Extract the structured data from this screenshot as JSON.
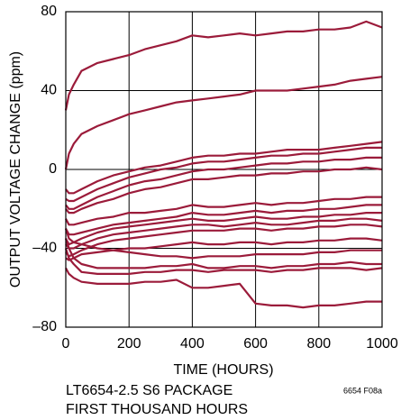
{
  "chart_data": {
    "type": "line",
    "x_label": "TIME (HOURS)",
    "y_label": "OUTPUT VOLTAGE CHANGE (ppm)",
    "caption": [
      "LT6654-2.5 S6 PACKAGE",
      "FIRST THOUSAND HOURS"
    ],
    "figure_code": "6654 F08a",
    "color": "#9b1b3a",
    "grid": true,
    "xlim": [
      0,
      1000
    ],
    "xticks": [
      0,
      200,
      400,
      600,
      800,
      1000
    ],
    "ylim": [
      -80,
      80
    ],
    "yticks": [
      {
        "value": -80,
        "label": "–80"
      },
      {
        "value": -40,
        "label": "–40"
      },
      0,
      40,
      80
    ],
    "x": [
      0,
      10,
      25,
      50,
      100,
      150,
      200,
      250,
      300,
      350,
      400,
      450,
      500,
      550,
      600,
      650,
      700,
      750,
      800,
      850,
      900,
      950,
      1000
    ],
    "series": [
      {
        "values": [
          30,
          38,
          43,
          50,
          54,
          56,
          58,
          61,
          63,
          65,
          68,
          67,
          68,
          69,
          68,
          69,
          70,
          70,
          71,
          71,
          72,
          75,
          72
        ]
      },
      {
        "values": [
          0,
          8,
          13,
          18,
          22,
          25,
          28,
          30,
          32,
          34,
          35,
          36,
          37,
          38,
          40,
          40,
          40,
          41,
          42,
          43,
          45,
          46,
          47
        ]
      },
      {
        "values": [
          -10,
          -12,
          -12,
          -10,
          -6,
          -3,
          -1,
          1,
          2,
          4,
          6,
          7,
          7,
          8,
          8,
          9,
          10,
          10,
          10,
          11,
          12,
          13,
          14
        ]
      },
      {
        "values": [
          -15,
          -16,
          -16,
          -14,
          -10,
          -7,
          -4,
          -2,
          0,
          1,
          3,
          4,
          4,
          5,
          6,
          7,
          7,
          8,
          8,
          9,
          10,
          11,
          11
        ]
      },
      {
        "values": [
          -18,
          -20,
          -20,
          -18,
          -14,
          -11,
          -8,
          -6,
          -5,
          -3,
          -1,
          0,
          0,
          1,
          2,
          3,
          3,
          4,
          4,
          5,
          5,
          6,
          6
        ]
      },
      {
        "values": [
          -20,
          -22,
          -22,
          -20,
          -17,
          -15,
          -12,
          -10,
          -9,
          -7,
          -5,
          -5,
          -4,
          -3,
          -3,
          -2,
          -2,
          -1,
          -1,
          0,
          0,
          1,
          0
        ]
      },
      {
        "values": [
          -25,
          -28,
          -28,
          -27,
          -25,
          -24,
          -22,
          -22,
          -21,
          -20,
          -18,
          -19,
          -19,
          -18,
          -17,
          -18,
          -17,
          -17,
          -16,
          -15,
          -15,
          -14,
          -14
        ]
      },
      {
        "values": [
          -30,
          -33,
          -33,
          -32,
          -30,
          -28,
          -27,
          -26,
          -25,
          -24,
          -22,
          -23,
          -23,
          -22,
          -21,
          -22,
          -21,
          -21,
          -20,
          -20,
          -19,
          -18,
          -18
        ]
      },
      {
        "values": [
          -35,
          -38,
          -37,
          -35,
          -32,
          -30,
          -29,
          -28,
          -27,
          -26,
          -25,
          -26,
          -26,
          -25,
          -24,
          -25,
          -25,
          -24,
          -24,
          -23,
          -23,
          -22,
          -22
        ]
      },
      {
        "values": [
          -38,
          -40,
          -40,
          -38,
          -35,
          -33,
          -32,
          -31,
          -30,
          -29,
          -28,
          -28,
          -29,
          -28,
          -27,
          -28,
          -28,
          -27,
          -26,
          -26,
          -25,
          -25,
          -26
        ]
      },
      {
        "values": [
          -42,
          -44,
          -43,
          -41,
          -38,
          -36,
          -35,
          -34,
          -33,
          -32,
          -31,
          -31,
          -31,
          -30,
          -30,
          -31,
          -30,
          -30,
          -29,
          -29,
          -28,
          -28,
          -29
        ]
      },
      {
        "values": [
          -45,
          -46,
          -45,
          -43,
          -42,
          -41,
          -40,
          -40,
          -39,
          -38,
          -37,
          -38,
          -38,
          -37,
          -37,
          -38,
          -37,
          -37,
          -36,
          -36,
          -35,
          -35,
          -36
        ]
      },
      {
        "values": [
          -30,
          -35,
          -37,
          -38,
          -40,
          -41,
          -42,
          -43,
          -44,
          -44,
          -45,
          -44,
          -44,
          -44,
          -43,
          -43,
          -43,
          -43,
          -42,
          -42,
          -41,
          -41,
          -41
        ]
      },
      {
        "values": [
          -35,
          -40,
          -45,
          -48,
          -50,
          -50,
          -50,
          -50,
          -49,
          -49,
          -48,
          -50,
          -50,
          -49,
          -49,
          -50,
          -49,
          -49,
          -48,
          -48,
          -47,
          -48,
          -48
        ]
      },
      {
        "values": [
          -40,
          -45,
          -48,
          -52,
          -53,
          -53,
          -53,
          -52,
          -52,
          -51,
          -51,
          -52,
          -51,
          -51,
          -51,
          -52,
          -51,
          -51,
          -50,
          -50,
          -50,
          -51,
          -50
        ]
      },
      {
        "values": [
          -50,
          -53,
          -55,
          -57,
          -58,
          -58,
          -58,
          -57,
          -57,
          -56,
          -60,
          -60,
          -59,
          -58,
          -68,
          -69,
          -69,
          -70,
          -69,
          -69,
          -68,
          -67,
          -67
        ]
      }
    ]
  }
}
